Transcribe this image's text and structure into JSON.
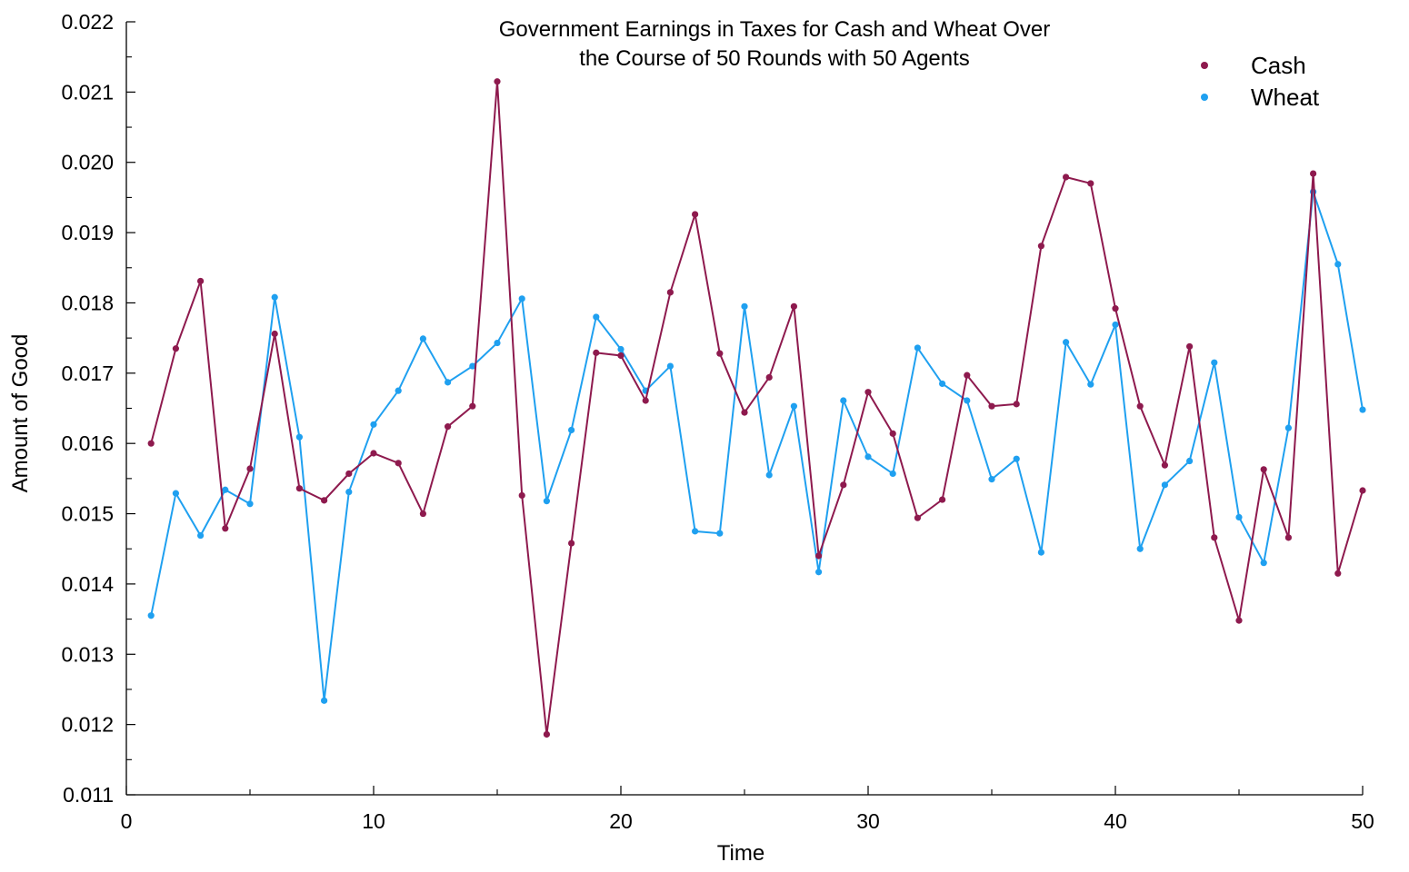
{
  "chart_data": {
    "type": "line",
    "title_line1": "Government Earnings in Taxes for Cash and Wheat Over",
    "title_line2": "the Course of 50 Rounds with 50 Agents",
    "xlabel": "Time",
    "ylabel": "Amount of Good",
    "xlim": [
      0,
      50
    ],
    "ylim": [
      0.011,
      0.022
    ],
    "x_ticks": [
      0,
      10,
      20,
      30,
      40,
      50
    ],
    "x_tick_labels": [
      "0",
      "10",
      "20",
      "30",
      "40",
      "50"
    ],
    "y_ticks": [
      0.011,
      0.012,
      0.013,
      0.014,
      0.015,
      0.016,
      0.017,
      0.018,
      0.019,
      0.02,
      0.021,
      0.022
    ],
    "y_tick_labels": [
      "0.011",
      "0.012",
      "0.013",
      "0.014",
      "0.015",
      "0.016",
      "0.017",
      "0.018",
      "0.019",
      "0.020",
      "0.021",
      "0.022"
    ],
    "grid": false,
    "legend_position": "top-right",
    "x": [
      1,
      2,
      3,
      4,
      5,
      6,
      7,
      8,
      9,
      10,
      11,
      12,
      13,
      14,
      15,
      16,
      17,
      18,
      19,
      20,
      21,
      22,
      23,
      24,
      25,
      26,
      27,
      28,
      29,
      30,
      31,
      32,
      33,
      34,
      35,
      36,
      37,
      38,
      39,
      40,
      41,
      42,
      43,
      44,
      45,
      46,
      47,
      48,
      49,
      50
    ],
    "series": [
      {
        "name": "Cash",
        "color": "#8e1a4e",
        "values": [
          0.016,
          0.01735,
          0.01831,
          0.01479,
          0.01564,
          0.01756,
          0.01536,
          0.01519,
          0.01557,
          0.01586,
          0.01572,
          0.015,
          0.01624,
          0.01653,
          0.02115,
          0.01526,
          0.01186,
          0.01458,
          0.01729,
          0.01725,
          0.01661,
          0.01815,
          0.01926,
          0.01728,
          0.01644,
          0.01694,
          0.01795,
          0.0144,
          0.01541,
          0.01673,
          0.01614,
          0.01494,
          0.0152,
          0.01697,
          0.01653,
          0.01656,
          0.01881,
          0.01979,
          0.0197,
          0.01792,
          0.01653,
          0.01569,
          0.01738,
          0.01466,
          0.01348,
          0.01563,
          0.01466,
          0.01984,
          0.01415,
          0.01533
        ]
      },
      {
        "name": "Wheat",
        "color": "#1fa0f0",
        "values": [
          0.01355,
          0.01529,
          0.01469,
          0.01534,
          0.01514,
          0.01808,
          0.01609,
          0.01234,
          0.01531,
          0.01627,
          0.01675,
          0.01749,
          0.01687,
          0.0171,
          0.01743,
          0.01806,
          0.01518,
          0.01619,
          0.0178,
          0.01734,
          0.01675,
          0.0171,
          0.01475,
          0.01472,
          0.01795,
          0.01555,
          0.01653,
          0.01417,
          0.01661,
          0.01581,
          0.01557,
          0.01736,
          0.01685,
          0.01661,
          0.01549,
          0.01578,
          0.01445,
          0.01744,
          0.01684,
          0.01769,
          0.0145,
          0.01541,
          0.01575,
          0.01715,
          0.01495,
          0.0143,
          0.01622,
          0.01958,
          0.01855,
          0.01648
        ]
      }
    ]
  }
}
